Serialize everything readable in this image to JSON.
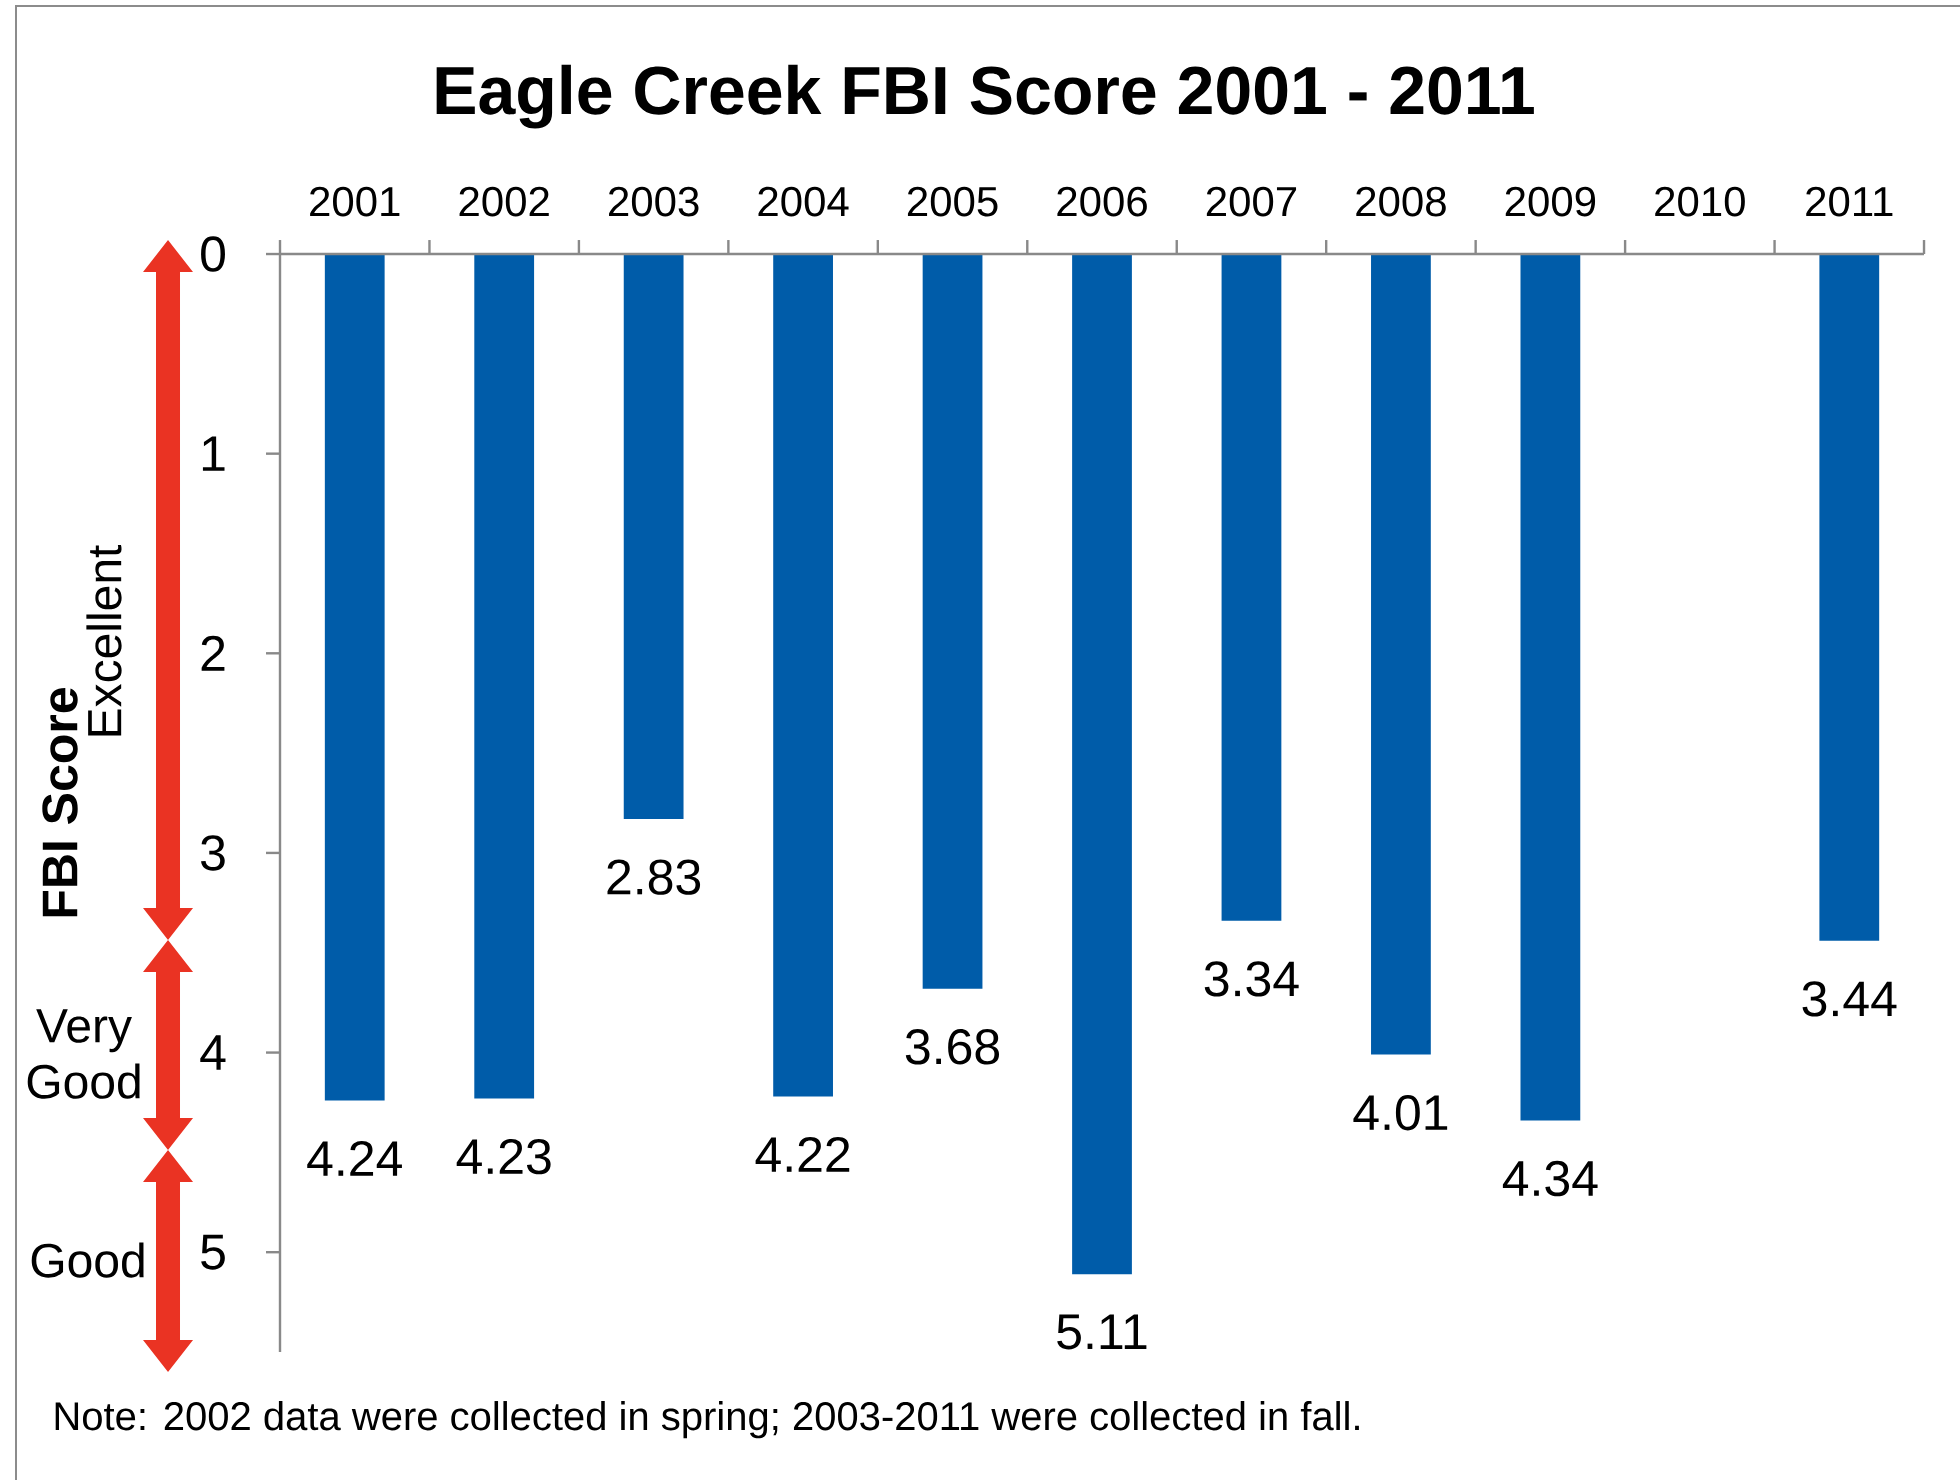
{
  "chart_data": {
    "type": "bar",
    "title": "Eagle Creek FBI Score 2001 - 2011",
    "ylabel": "FBI Score",
    "categories": [
      "2001",
      "2002",
      "2003",
      "2004",
      "2005",
      "2006",
      "2007",
      "2008",
      "2009",
      "2010",
      "2011"
    ],
    "values": [
      4.24,
      4.23,
      2.83,
      4.22,
      3.68,
      5.11,
      3.34,
      4.01,
      4.34,
      null,
      3.44
    ],
    "color": "#005ca9",
    "ylim": [
      5.5,
      0
    ],
    "yticks": [
      0,
      1,
      2,
      3,
      4,
      5
    ],
    "data_labels": true,
    "annotations": [
      "Excellent",
      "Very Good",
      "Good",
      "Note: 2002 data were collected in spring; 2003-2011 were collected in fall."
    ]
  }
}
